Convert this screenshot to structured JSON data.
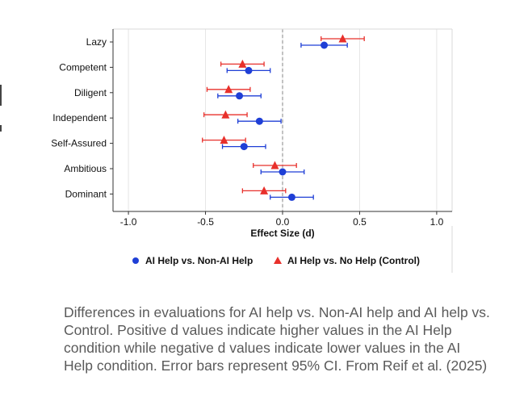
{
  "chart_data": {
    "type": "dot-errorbar",
    "title": "",
    "xlabel": "Effect Size (d)",
    "ylabel": "",
    "xlim": [
      -1.1,
      1.1
    ],
    "x_ticks": [
      -1.0,
      -0.5,
      0.0,
      0.5,
      1.0
    ],
    "x_tick_labels": [
      "-1.0",
      "-0.5",
      "0.0",
      "0.5",
      "1.0"
    ],
    "reference_line": 0.0,
    "categories": [
      "Lazy",
      "Competent",
      "Diligent",
      "Independent",
      "Self-Assured",
      "Ambitious",
      "Dominant"
    ],
    "series": [
      {
        "name": "AI Help vs. Non-AI Help",
        "marker": "circle",
        "color": "#1f3fd6",
        "values": [
          0.27,
          -0.22,
          -0.28,
          -0.15,
          -0.25,
          0.0,
          0.06
        ],
        "ci_low": [
          0.12,
          -0.36,
          -0.42,
          -0.29,
          -0.39,
          -0.14,
          -0.08
        ],
        "ci_high": [
          0.42,
          -0.08,
          -0.14,
          -0.01,
          -0.11,
          0.14,
          0.2
        ]
      },
      {
        "name": "AI Help vs. No Help (Control)",
        "marker": "triangle",
        "color": "#e8302b",
        "values": [
          0.39,
          -0.26,
          -0.35,
          -0.37,
          -0.38,
          -0.05,
          -0.12
        ],
        "ci_low": [
          0.25,
          -0.4,
          -0.49,
          -0.51,
          -0.52,
          -0.19,
          -0.26
        ],
        "ci_high": [
          0.53,
          -0.12,
          -0.21,
          -0.23,
          -0.24,
          0.09,
          0.02
        ]
      }
    ],
    "legend_position": "bottom"
  },
  "caption": "Differences in evaluations for AI help vs. Non-AI help and AI help vs. Control. Positive d values indicate higher values in the AI Help condition while negative d values indicate lower values in the AI Help condition. Error bars represent 95% CI. From Reif et al. (2025)"
}
